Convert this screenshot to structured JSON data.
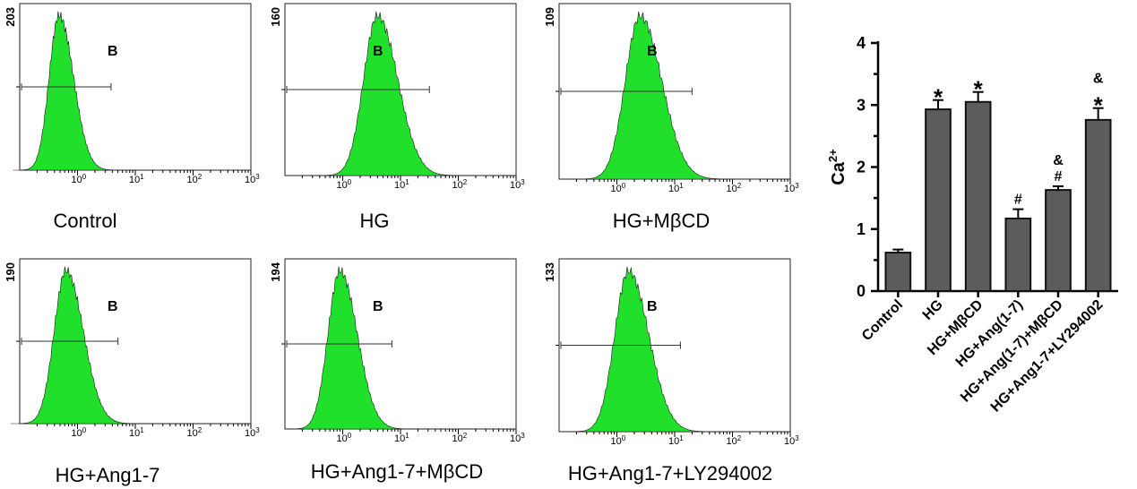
{
  "chart_data": [
    {
      "type": "histogram",
      "title": "Control",
      "y_max_label": "203",
      "gate_label": "B",
      "x_scale": "log",
      "x_ticks": [
        "0",
        "1",
        "2",
        "3"
      ],
      "x_tick_base": "10",
      "peak_log": -0.32,
      "width_log": 0.2
    },
    {
      "type": "histogram",
      "title": "HG",
      "y_max_label": "160",
      "gate_label": "B",
      "x_scale": "log",
      "x_ticks": [
        "0",
        "1",
        "2",
        "3"
      ],
      "x_tick_base": "10",
      "peak_log": 0.6,
      "width_log": 0.28
    },
    {
      "type": "histogram",
      "title": "HG+MβCD",
      "y_max_label": "109",
      "gate_label": "B",
      "x_scale": "log",
      "x_ticks": [
        "0",
        "1",
        "2",
        "3"
      ],
      "x_tick_base": "10",
      "peak_log": 0.4,
      "width_log": 0.3
    },
    {
      "type": "histogram",
      "title": "HG+Ang1-7",
      "y_max_label": "190",
      "gate_label": "B",
      "x_scale": "log",
      "x_ticks": [
        "0",
        "1",
        "2",
        "3"
      ],
      "x_tick_base": "10",
      "peak_log": -0.2,
      "width_log": 0.24
    },
    {
      "type": "histogram",
      "title": "HG+Ang1-7+MβCD",
      "y_max_label": "194",
      "gate_label": "B",
      "x_scale": "log",
      "x_ticks": [
        "0",
        "1",
        "2",
        "3"
      ],
      "x_tick_base": "10",
      "peak_log": -0.05,
      "width_log": 0.24
    },
    {
      "type": "histogram",
      "title": "HG+Ang1-7+LY294002",
      "y_max_label": "133",
      "gate_label": "B",
      "x_scale": "log",
      "x_ticks": [
        "0",
        "1",
        "2",
        "3"
      ],
      "x_tick_base": "10",
      "peak_log": 0.2,
      "width_log": 0.28
    },
    {
      "type": "bar",
      "ylabel": "Ca",
      "ylabel_superscript": "2+",
      "ylim": [
        0,
        4
      ],
      "yticks": [
        0,
        1,
        2,
        3,
        4
      ],
      "categories": [
        "Control",
        "HG",
        "HG+MβCD",
        "HG+Ang(1-7)",
        "HG+Ang(1-7)+MβCD",
        "HG+Ang1-7+LY294002"
      ],
      "values": [
        0.62,
        2.93,
        3.05,
        1.17,
        1.63,
        2.76
      ],
      "errors": [
        0.05,
        0.15,
        0.16,
        0.15,
        0.06,
        0.19
      ],
      "annotations": [
        [],
        [
          "*"
        ],
        [
          "*"
        ],
        [
          "#"
        ],
        [
          "#",
          "&"
        ],
        [
          "*",
          "&"
        ]
      ]
    }
  ]
}
